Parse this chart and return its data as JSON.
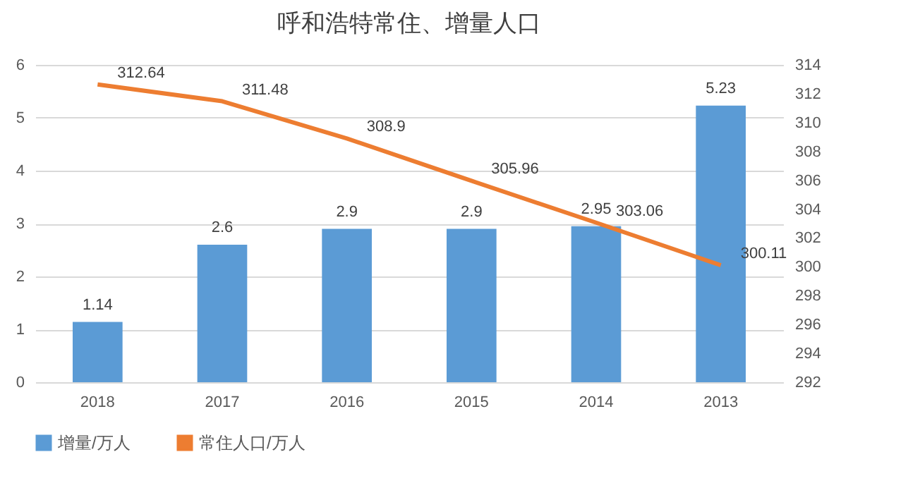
{
  "chart_data": {
    "type": "bar",
    "title": "呼和浩特常住、增量人口",
    "categories": [
      "2018",
      "2017",
      "2016",
      "2015",
      "2014",
      "2013"
    ],
    "series": [
      {
        "name": "增量/万人",
        "color": "#5b9bd5",
        "values": [
          1.14,
          2.6,
          2.9,
          2.9,
          2.95,
          5.23
        ]
      },
      {
        "name": "常住人口/万人",
        "color": "#ed7d31",
        "type": "line",
        "axis": "y2",
        "values": [
          312.64,
          311.48,
          308.9,
          305.96,
          303.06,
          300.11
        ]
      }
    ],
    "ylim": [
      0,
      6
    ],
    "yticks": [
      0,
      1,
      2,
      3,
      4,
      5,
      6
    ],
    "y2lim": [
      292,
      314
    ],
    "y2ticks": [
      292,
      294,
      296,
      298,
      300,
      302,
      304,
      306,
      308,
      310,
      312,
      314
    ],
    "grid": "y",
    "legend": "bottom",
    "data_labels": true,
    "marker": "none",
    "line_style": "solid"
  }
}
